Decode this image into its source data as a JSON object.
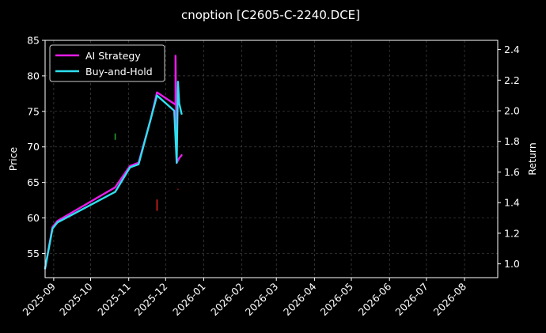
{
  "chart_data": {
    "type": "line",
    "title": "cnoption [C2605-C-2240.DCE]",
    "xlabel": "",
    "ylabel_left": "Price",
    "ylabel_right": "Return",
    "ylim_left": [
      51.6,
      85
    ],
    "ylim_right": [
      0.91,
      2.46
    ],
    "xlim": [
      "2025-08-25",
      "2026-08-28"
    ],
    "left_ticks": [
      55,
      60,
      65,
      70,
      75,
      80,
      85
    ],
    "right_ticks": [
      1.0,
      1.2,
      1.4,
      1.6,
      1.8,
      2.0,
      2.2,
      2.4
    ],
    "x_ticks": [
      "2025-09",
      "2025-10",
      "2025-11",
      "2025-12",
      "2026-01",
      "2026-02",
      "2026-03",
      "2026-04",
      "2026-05",
      "2026-06",
      "2026-07",
      "2026-08"
    ],
    "x_tick_dates": [
      "2025-09-01",
      "2025-10-01",
      "2025-11-01",
      "2025-12-01",
      "2026-01-01",
      "2026-02-01",
      "2026-03-01",
      "2026-04-01",
      "2026-05-01",
      "2026-06-01",
      "2026-07-01",
      "2026-08-01"
    ],
    "grid": true,
    "legend_position": "top-left",
    "colors": {
      "ai_strategy": "#e81ce8",
      "buy_and_hold": "#2ee0f0",
      "buy_marker": "#1f9e2f",
      "sell_marker": "#e01f1f",
      "grid": "#444444",
      "axis": "#ffffff"
    },
    "series": [
      {
        "name": "AI Strategy",
        "axis": "right",
        "x": [
          "2025-08-25",
          "2025-08-31",
          "2025-09-04",
          "2025-10-21",
          "2025-11-02",
          "2025-11-09",
          "2025-11-19",
          "2025-11-24",
          "2025-12-09",
          "2025-12-09",
          "2025-12-10",
          "2025-12-12",
          "2025-12-14"
        ],
        "y": [
          0.97,
          1.24,
          1.28,
          1.5,
          1.64,
          1.66,
          1.95,
          2.12,
          2.04,
          2.36,
          1.66,
          1.69,
          1.71
        ]
      },
      {
        "name": "Buy-and-Hold",
        "axis": "right",
        "x": [
          "2025-08-25",
          "2025-08-31",
          "2025-09-04",
          "2025-10-21",
          "2025-11-02",
          "2025-11-09",
          "2025-11-19",
          "2025-11-24",
          "2025-12-08",
          "2025-12-10",
          "2025-12-11",
          "2025-12-12",
          "2025-12-14"
        ],
        "y": [
          0.97,
          1.23,
          1.27,
          1.47,
          1.63,
          1.65,
          1.95,
          2.1,
          2.0,
          1.66,
          2.19,
          2.05,
          1.98
        ]
      }
    ],
    "markers": [
      {
        "type": "buy",
        "x": "2025-10-21",
        "y": [
          71.0,
          71.9
        ]
      },
      {
        "type": "sell",
        "x": "2025-11-24",
        "y": [
          61.0,
          62.6
        ]
      },
      {
        "type": "sell",
        "x": "2025-12-11",
        "y": [
          64.0,
          64.1
        ]
      }
    ]
  }
}
